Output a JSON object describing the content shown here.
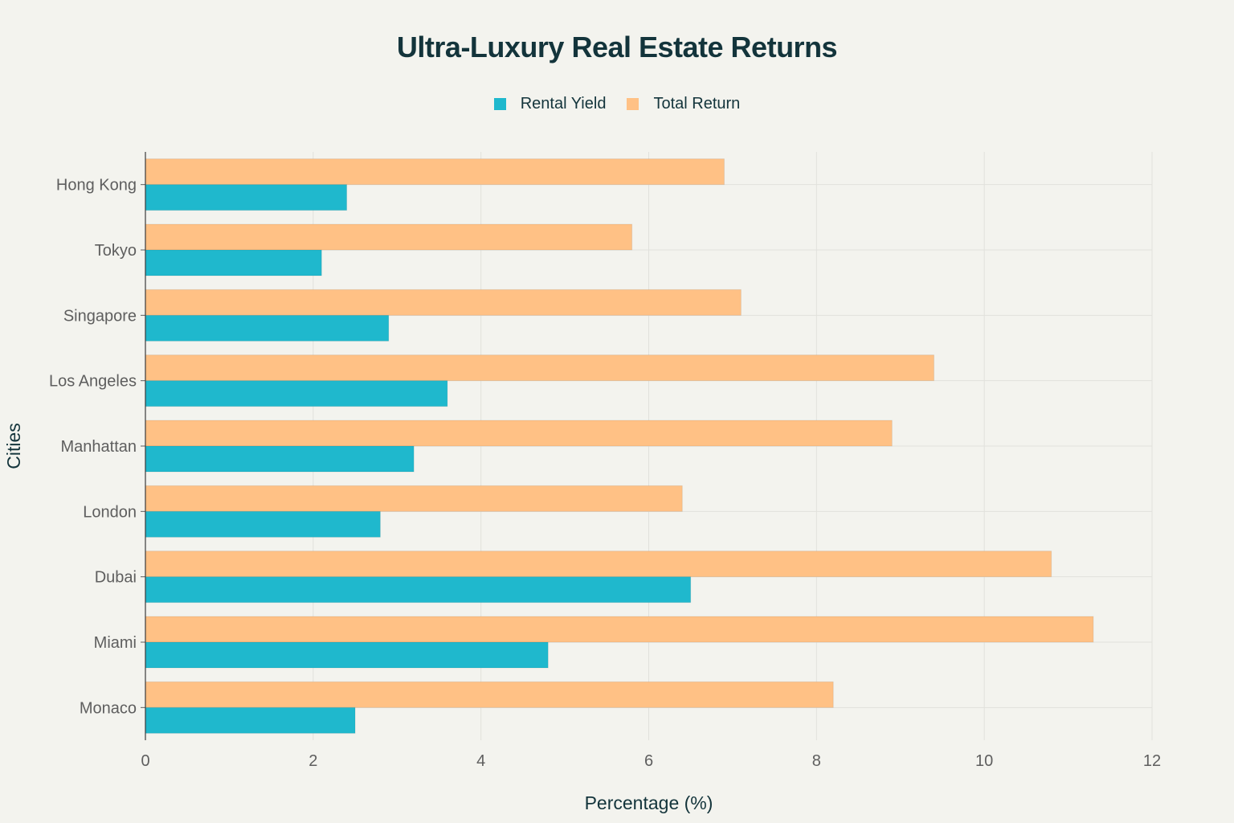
{
  "chart_data": {
    "type": "bar",
    "orientation": "horizontal",
    "title": "Ultra-Luxury Real Estate Returns",
    "xlabel": "Percentage (%)",
    "ylabel": "Cities",
    "xlim": [
      0,
      12
    ],
    "xticks": [
      0,
      2,
      4,
      6,
      8,
      10,
      12
    ],
    "grid": true,
    "legend_position": "top-center",
    "categories": [
      "Hong Kong",
      "Tokyo",
      "Singapore",
      "Los Angeles",
      "Manhattan",
      "London",
      "Dubai",
      "Miami",
      "Monaco"
    ],
    "series": [
      {
        "name": "Rental Yield",
        "color": "#1fb8cd",
        "values": [
          2.4,
          2.1,
          2.9,
          3.6,
          3.2,
          2.8,
          6.5,
          4.8,
          2.5
        ]
      },
      {
        "name": "Total Return",
        "color": "#ffc185",
        "values": [
          6.9,
          5.8,
          7.1,
          9.4,
          8.9,
          6.4,
          10.8,
          11.3,
          8.2
        ]
      }
    ]
  }
}
